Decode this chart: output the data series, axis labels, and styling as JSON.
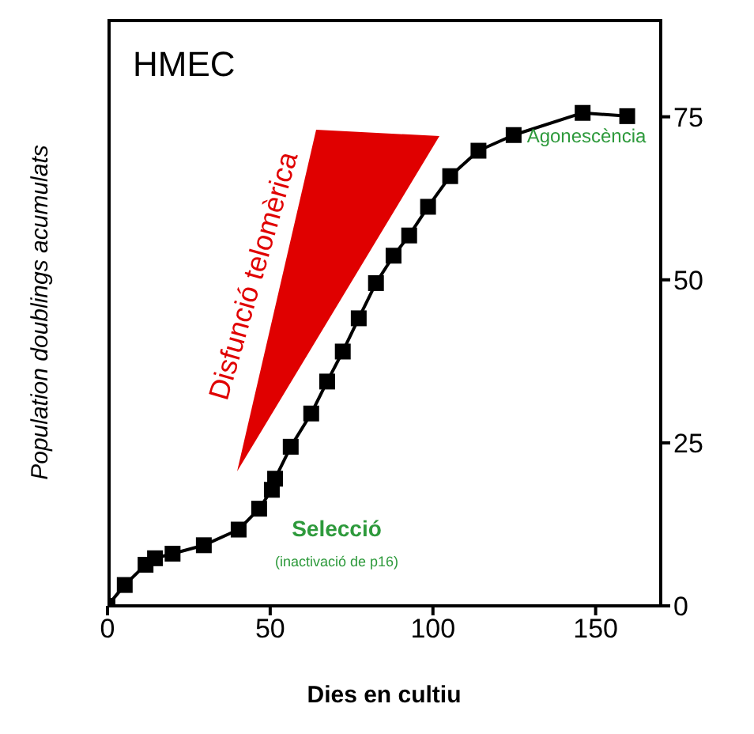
{
  "chart_data": {
    "type": "line",
    "title": "HMEC",
    "xlabel": "Dies en cultiu",
    "ylabel": "Population doublings acumulats",
    "annotations": [
      "Disfunció telomèrica",
      "Agonescència",
      "Selecció",
      "(inactivació de p16)"
    ],
    "series": [
      {
        "color": "#000000",
        "x": [
          0,
          5.3,
          11.7,
          14.6,
          20,
          29.6,
          40.3,
          46.6,
          50.5,
          51.5,
          56.3,
          62.6,
          67.5,
          72.3,
          77.2,
          82.5,
          87.9,
          92.7,
          98.5,
          105.3,
          114,
          124.8,
          146,
          159.7
        ],
        "values": [
          0,
          3.2,
          6.3,
          7.3,
          8,
          9.3,
          11.7,
          14.9,
          17.8,
          19.5,
          24.4,
          29.5,
          34.4,
          39,
          44.1,
          49.5,
          53.7,
          56.8,
          61.2,
          65.9,
          69.8,
          72.2,
          75.6,
          75.1
        ]
      }
    ],
    "xlim": [
      0,
      170
    ],
    "xticks": [
      0,
      50,
      100,
      150
    ],
    "ylim": [
      0,
      90
    ],
    "yticks": [
      0,
      25,
      50,
      75
    ],
    "grid": false,
    "marker": "square",
    "line_style": "solid"
  }
}
